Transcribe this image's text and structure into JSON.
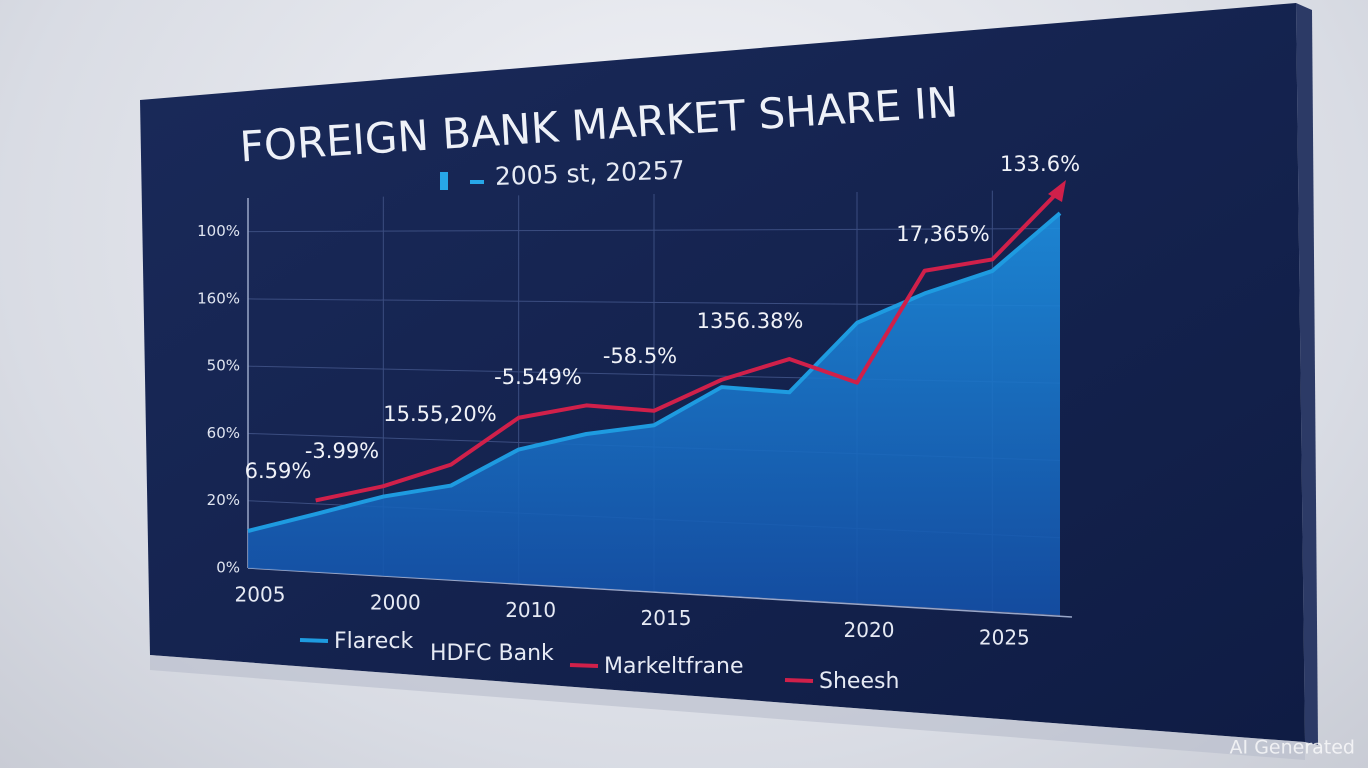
{
  "chart_data": {
    "type": "area-line",
    "title": "FOREIGN BANK MARKET SHARE IN",
    "subtitle": "2005 st, 20257",
    "categories": [
      "2005",
      null,
      "2000",
      null,
      "2010",
      null,
      "2015",
      null,
      null,
      "2020",
      null,
      "2025",
      null
    ],
    "y_axis_labels": [
      "0%",
      "20%",
      "60%",
      "50%",
      "160%",
      "100%"
    ],
    "ylim": [
      0,
      110
    ],
    "series": [
      {
        "name": "Flareck",
        "color": "#1e9be0",
        "values": [
          11,
          17,
          23,
          27,
          38,
          43,
          46,
          57,
          56,
          75,
          83,
          89,
          104
        ]
      },
      {
        "name": "Markeltfrane",
        "color": "#d0204a",
        "values": [
          null,
          21,
          26,
          33,
          47,
          51,
          50,
          59,
          65,
          59,
          89,
          92,
          110
        ]
      }
    ],
    "legend_extra": [
      {
        "name": "HDFC Bank"
      },
      {
        "name": "Sheesh",
        "color": "#d0204a"
      }
    ],
    "annotations": [
      "6.59%",
      "-3.99%",
      "15.55,20%",
      "-5.549%",
      "-58.5%",
      "1356.38%",
      "17,365%",
      "133.6%"
    ],
    "grid": true,
    "watermark": "AI Generated"
  }
}
